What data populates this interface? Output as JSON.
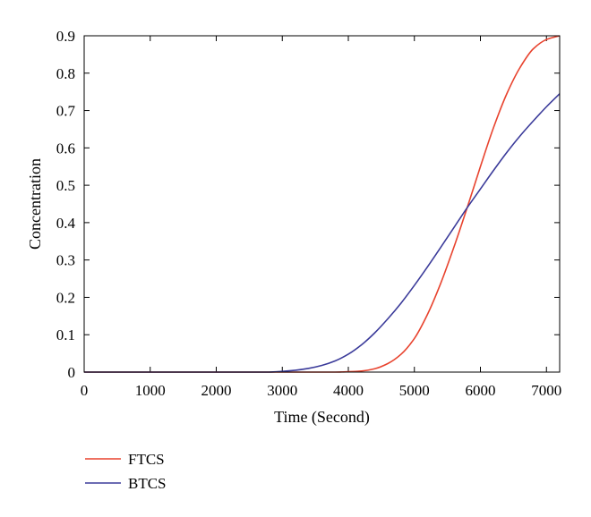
{
  "chart_data": {
    "type": "line",
    "title": "",
    "xlabel": "Time (Second)",
    "ylabel": "Concentration",
    "xlim": [
      0,
      7200
    ],
    "ylim": [
      0,
      0.9
    ],
    "xticks": [
      0,
      1000,
      2000,
      3000,
      4000,
      5000,
      6000,
      7000
    ],
    "yticks": [
      0,
      0.1,
      0.2,
      0.3,
      0.4,
      0.5,
      0.6,
      0.7,
      0.8,
      0.9
    ],
    "grid": false,
    "legend_position": "below",
    "x": [
      0,
      2800,
      3000,
      3200,
      3400,
      3600,
      3800,
      4000,
      4200,
      4400,
      4600,
      4800,
      5000,
      5200,
      5400,
      5600,
      5800,
      6000,
      6200,
      6400,
      6600,
      6800,
      7000,
      7200
    ],
    "series": [
      {
        "name": "FTCS",
        "color": "#e8432e",
        "values": [
          0,
          0,
          0,
          0,
          0,
          0,
          0,
          0.001,
          0.003,
          0.009,
          0.023,
          0.048,
          0.09,
          0.155,
          0.238,
          0.335,
          0.44,
          0.55,
          0.655,
          0.745,
          0.815,
          0.865,
          0.89,
          0.9
        ]
      },
      {
        "name": "BTCS",
        "color": "#3b3b9a",
        "values": [
          0,
          0,
          0.002,
          0.005,
          0.01,
          0.018,
          0.03,
          0.048,
          0.073,
          0.105,
          0.143,
          0.185,
          0.232,
          0.282,
          0.334,
          0.387,
          0.44,
          0.49,
          0.54,
          0.588,
          0.632,
          0.672,
          0.71,
          0.745
        ]
      }
    ]
  }
}
